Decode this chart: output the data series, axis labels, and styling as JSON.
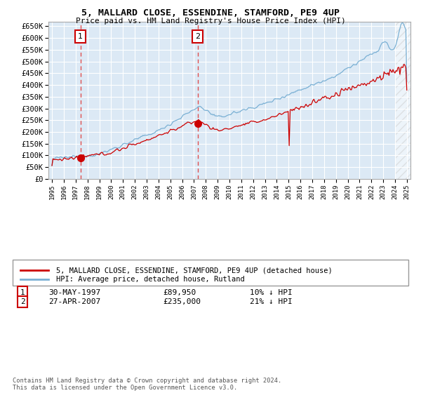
{
  "title": "5, MALLARD CLOSE, ESSENDINE, STAMFORD, PE9 4UP",
  "subtitle": "Price paid vs. HM Land Registry's House Price Index (HPI)",
  "legend_line1": "5, MALLARD CLOSE, ESSENDINE, STAMFORD, PE9 4UP (detached house)",
  "legend_line2": "HPI: Average price, detached house, Rutland",
  "sale1_date": "30-MAY-1997",
  "sale1_price": 89950,
  "sale1_label": "10% ↓ HPI",
  "sale1_year": 1997.41,
  "sale2_date": "27-APR-2007",
  "sale2_price": 235000,
  "sale2_label": "21% ↓ HPI",
  "sale2_year": 2007.32,
  "ylim": [
    0,
    670000
  ],
  "yticks": [
    0,
    50000,
    100000,
    150000,
    200000,
    250000,
    300000,
    350000,
    400000,
    450000,
    500000,
    550000,
    600000,
    650000
  ],
  "xmin": 1995,
  "xmax": 2025,
  "plot_bg": "#dce9f5",
  "grid_color": "#ffffff",
  "red_line_color": "#cc0000",
  "blue_line_color": "#7ab0d4",
  "marker_color": "#cc0000",
  "dashed_line_color": "#e05050",
  "box_color": "#cc0000",
  "footer": "Contains HM Land Registry data © Crown copyright and database right 2024.\nThis data is licensed under the Open Government Licence v3.0."
}
